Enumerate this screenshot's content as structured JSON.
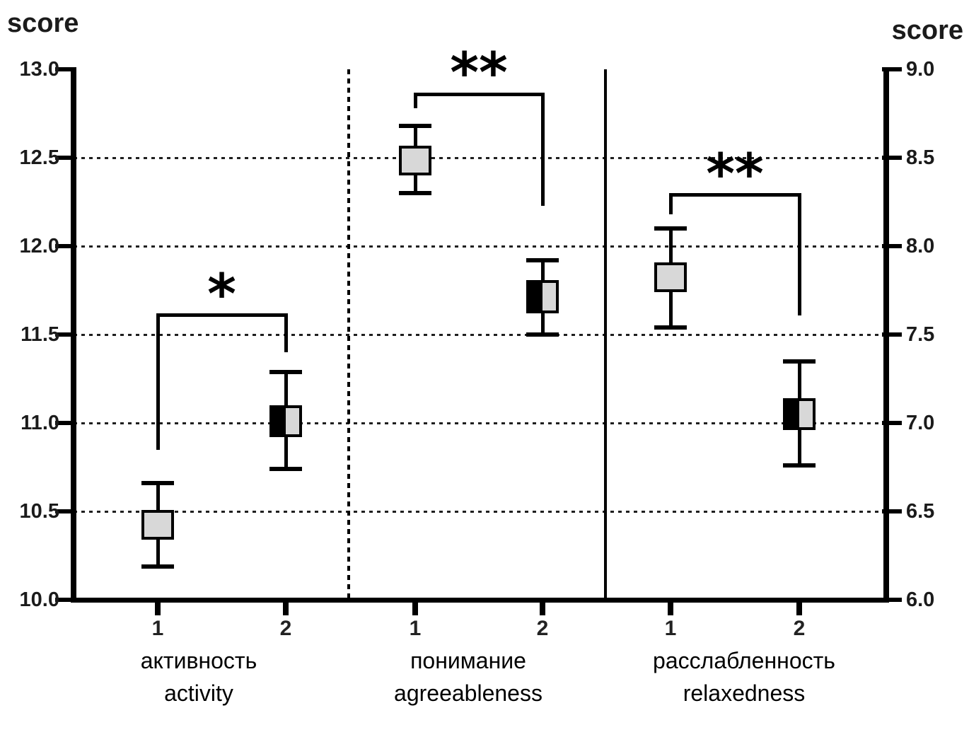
{
  "chart_data": {
    "type": "scatter",
    "subtype": "mean-with-error-bar-boxes",
    "title": "",
    "axes": {
      "left": {
        "label": "score",
        "min": 10.0,
        "max": 13.0,
        "step": 0.5,
        "ticks": [
          "13.0",
          "12.5",
          "12.0",
          "11.5",
          "11.0",
          "10.5",
          "10.0"
        ]
      },
      "right": {
        "label": "score",
        "min": 6.0,
        "max": 9.0,
        "step": 0.5,
        "ticks": [
          "9.0",
          "8.5",
          "8.0",
          "7.5",
          "7.0",
          "6.5",
          "6.0"
        ]
      }
    },
    "gridlines_left_values": [
      12.5,
      12.0,
      11.5,
      11.0,
      10.5
    ],
    "grid": "dotted-horizontal",
    "panels": [
      {
        "label_ru": "активность",
        "label_en": "activity",
        "axis": "left",
        "separator_after": "dashed",
        "categories": [
          "1",
          "2"
        ],
        "points": [
          {
            "category": "1",
            "marker": "gray",
            "mean": 10.42,
            "box_low": 10.34,
            "box_high": 10.51,
            "whisker_low": 10.19,
            "whisker_high": 10.66
          },
          {
            "category": "2",
            "marker": "half-black",
            "mean": 11.01,
            "box_low": 10.92,
            "box_high": 11.1,
            "whisker_low": 10.74,
            "whisker_high": 11.29
          }
        ],
        "significance": {
          "label": "*",
          "bar_y": 11.61,
          "arm1_end": 10.85,
          "arm2_end": 11.4
        }
      },
      {
        "label_ru": "понимание",
        "label_en": "agreeableness",
        "axis": "left",
        "separator_after": "solid",
        "categories": [
          "1",
          "2"
        ],
        "points": [
          {
            "category": "1",
            "marker": "gray",
            "mean": 12.48,
            "box_low": 12.4,
            "box_high": 12.57,
            "whisker_low": 12.3,
            "whisker_high": 12.68
          },
          {
            "category": "2",
            "marker": "half-black",
            "mean": 11.71,
            "box_low": 11.62,
            "box_high": 11.81,
            "whisker_low": 11.5,
            "whisker_high": 11.92
          }
        ],
        "significance": {
          "label": "**",
          "bar_y": 12.86,
          "arm1_end": 12.78,
          "arm2_end": 12.23
        }
      },
      {
        "label_ru": "расслабленность",
        "label_en": "relaxedness",
        "axis": "right",
        "separator_after": null,
        "categories": [
          "1",
          "2"
        ],
        "points": [
          {
            "category": "1",
            "marker": "gray",
            "mean": 7.82,
            "box_low": 7.74,
            "box_high": 7.91,
            "whisker_low": 7.54,
            "whisker_high": 8.1
          },
          {
            "category": "2",
            "marker": "half-black",
            "mean": 7.05,
            "box_low": 6.96,
            "box_high": 7.14,
            "whisker_low": 6.76,
            "whisker_high": 7.35
          }
        ],
        "significance": {
          "label": "**",
          "bar_y": 8.29,
          "arm1_end": 8.18,
          "arm2_end": 7.61
        }
      }
    ],
    "colors": {
      "box_gray": "#d8d8d8",
      "box_black": "#000000",
      "line": "#000000"
    }
  }
}
